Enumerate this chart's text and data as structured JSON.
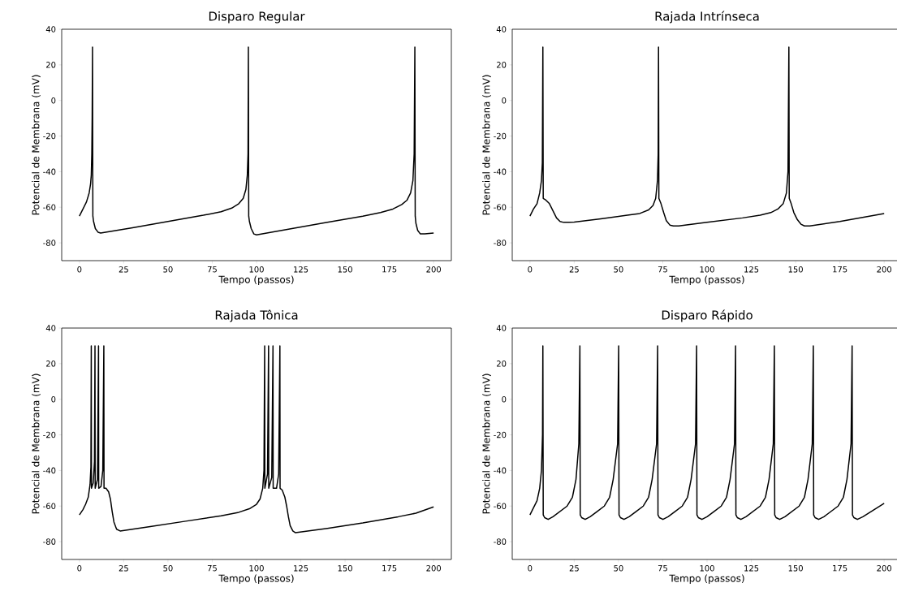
{
  "chart_data": [
    {
      "type": "line",
      "title": "Disparo Regular",
      "xlabel": "Tempo (passos)",
      "ylabel": "Potencial de Membrana (mV)",
      "xlim": [
        -10,
        210
      ],
      "ylim": [
        -90,
        40
      ],
      "xticks": [
        0,
        25,
        50,
        75,
        100,
        125,
        150,
        175,
        200
      ],
      "yticks": [
        -80,
        -60,
        -40,
        -20,
        0,
        20,
        40
      ],
      "x": [
        0,
        2,
        4,
        5.5,
        6.3,
        6.7,
        7.0,
        7.2,
        7.4,
        7.6,
        8,
        9,
        10.5,
        12,
        30,
        50,
        70,
        80,
        86,
        90,
        92.5,
        94,
        94.8,
        95.2,
        95.4,
        95.6,
        96,
        97,
        98.5,
        100,
        120,
        140,
        160,
        170,
        177,
        182,
        185,
        187,
        188.3,
        189,
        189.4,
        189.6,
        190,
        191,
        192.5,
        195,
        200
      ],
      "series": [
        {
          "color": "#000000",
          "values": [
            -65,
            -61,
            -57,
            -52,
            -47,
            -42,
            -30,
            -10,
            30,
            -65,
            -68,
            -72,
            -74,
            -74.5,
            -71.5,
            -68,
            -64.5,
            -62.5,
            -60.5,
            -58,
            -55,
            -50,
            -42,
            -30,
            30,
            -65,
            -68,
            -72,
            -75,
            -75.5,
            -72,
            -68.5,
            -65,
            -63,
            -61,
            -58.5,
            -56,
            -52,
            -45,
            -30,
            30,
            -65,
            -69,
            -73,
            -75,
            -75,
            -74.5
          ]
        }
      ]
    },
    {
      "type": "line",
      "title": "Rajada Intrínseca",
      "xlabel": "Tempo (passos)",
      "ylabel": "Potencial de Membrana (mV)",
      "xlim": [
        -10,
        210
      ],
      "ylim": [
        -90,
        40
      ],
      "xticks": [
        0,
        25,
        50,
        75,
        100,
        125,
        150,
        175,
        200
      ],
      "yticks": [
        -80,
        -60,
        -40,
        -20,
        0,
        20,
        40
      ],
      "x": [
        0,
        2,
        4,
        5.5,
        6.5,
        7.0,
        7.3,
        7.5,
        9,
        11,
        13,
        15,
        17,
        19,
        22,
        25,
        40,
        55,
        62,
        67,
        69.5,
        71,
        72,
        72.4,
        72.6,
        72.8,
        74,
        75.5,
        77,
        79,
        81,
        84,
        100,
        120,
        130,
        136,
        140,
        143,
        144.8,
        145.7,
        146.2,
        146.4,
        147.5,
        149,
        151,
        153,
        155,
        158,
        175,
        200
      ],
      "series": [
        {
          "color": "#000000",
          "values": [
            -65,
            -61,
            -58,
            -52,
            -45,
            -35,
            30,
            -55,
            -56,
            -58,
            -62,
            -66,
            -68,
            -68.5,
            -68.5,
            -68.3,
            -66.5,
            -64.5,
            -63.5,
            -61.5,
            -59,
            -55,
            -45,
            -30,
            30,
            -55,
            -58,
            -63,
            -67.5,
            -70,
            -70.5,
            -70.5,
            -68.5,
            -66,
            -64.5,
            -63,
            -61,
            -58,
            -52,
            -40,
            30,
            -55,
            -58,
            -63,
            -67,
            -69.5,
            -70.5,
            -70.5,
            -68,
            -63.5
          ]
        }
      ]
    },
    {
      "type": "line",
      "title": "Rajada Tônica",
      "xlabel": "Tempo (passos)",
      "ylabel": "Potencial de Membrana (mV)",
      "xlim": [
        -10,
        210
      ],
      "ylim": [
        -90,
        40
      ],
      "xticks": [
        0,
        25,
        50,
        75,
        100,
        125,
        150,
        175,
        200
      ],
      "yticks": [
        -80,
        -60,
        -40,
        -20,
        0,
        20,
        40
      ],
      "x": [
        0,
        2,
        3.5,
        5,
        6,
        6.5,
        6.7,
        6.8,
        7.8,
        8.5,
        8.8,
        8.9,
        10.2,
        10.8,
        10.9,
        12.2,
        13.2,
        13.8,
        13.9,
        15,
        16.5,
        17.5,
        18.5,
        19.5,
        21,
        23,
        40,
        60,
        80,
        90,
        96,
        100,
        102,
        103.5,
        104.2,
        104.6,
        104.7,
        106.2,
        106.8,
        106.9,
        108.6,
        109.3,
        109.4,
        111.3,
        112.5,
        113.2,
        113.3,
        114.5,
        116,
        117,
        118,
        119,
        120.5,
        122,
        140,
        160,
        180,
        190,
        200
      ],
      "series": [
        {
          "color": "#000000",
          "values": [
            -65,
            -62,
            -59,
            -55,
            -48,
            -38,
            30,
            -50,
            -47,
            -35,
            30,
            -50,
            -45,
            30,
            -50,
            -49,
            -40,
            30,
            -50,
            -50,
            -52,
            -56,
            -63,
            -69,
            -73,
            -74,
            -71.5,
            -68.5,
            -65.5,
            -63.5,
            -61.5,
            -59,
            -56,
            -50,
            -40,
            30,
            -50,
            -42,
            30,
            -50,
            -44,
            30,
            -50,
            -50,
            -42,
            30,
            -50,
            -51,
            -55,
            -60,
            -66,
            -71,
            -74,
            -75,
            -72.5,
            -69.5,
            -66,
            -64,
            -60.5
          ]
        }
      ]
    },
    {
      "type": "line",
      "title": "Disparo Rápido",
      "xlabel": "Tempo (passos)",
      "ylabel": "Potencial de Membrana (mV)",
      "xlim": [
        -10,
        210
      ],
      "ylim": [
        -90,
        40
      ],
      "xticks": [
        0,
        25,
        50,
        75,
        100,
        125,
        150,
        175,
        200
      ],
      "yticks": [
        -80,
        -60,
        -40,
        -20,
        0,
        20,
        40
      ],
      "x": [
        0,
        2,
        4,
        5.5,
        6.5,
        7.1,
        7.3,
        7.5,
        8.3,
        10.3,
        13,
        17,
        21,
        24,
        26,
        27.6,
        28.2,
        28.4,
        29.2,
        31.2,
        34,
        38,
        42,
        45,
        47,
        49.5,
        50.1,
        50.3,
        51.1,
        53.1,
        56,
        60,
        64,
        67,
        69,
        71.5,
        72.1,
        72.3,
        73.1,
        75.1,
        78,
        82,
        86,
        89,
        91,
        93.5,
        94.1,
        94.3,
        95.1,
        97.1,
        100,
        104,
        108,
        111,
        113,
        115.5,
        116.1,
        116.3,
        117.1,
        119.1,
        122,
        126,
        130,
        133,
        135,
        137.4,
        138,
        138.2,
        139,
        141,
        144,
        148,
        152,
        155,
        157,
        159.4,
        160,
        160.2,
        161,
        163,
        166,
        170,
        174,
        177,
        179,
        181.3,
        181.9,
        182.1,
        182.9,
        184.9,
        188,
        192,
        196,
        200
      ],
      "series": [
        {
          "color": "#000000",
          "values": [
            -65,
            -61,
            -57,
            -50,
            -40,
            -20,
            30,
            -65,
            -66.5,
            -67.5,
            -66,
            -63,
            -60,
            -55,
            -45,
            -25,
            30,
            -65,
            -66.5,
            -67.5,
            -66,
            -63,
            -60,
            -55,
            -45,
            -25,
            30,
            -65,
            -66.5,
            -67.5,
            -66,
            -63,
            -60,
            -55,
            -45,
            -25,
            30,
            -65,
            -66.5,
            -67.5,
            -66,
            -63,
            -60,
            -55,
            -45,
            -25,
            30,
            -65,
            -66.5,
            -67.5,
            -66,
            -63,
            -60,
            -55,
            -45,
            -25,
            30,
            -65,
            -66.5,
            -67.5,
            -66,
            -63,
            -60,
            -55,
            -45,
            -25,
            30,
            -65,
            -66.5,
            -67.5,
            -66,
            -63,
            -60,
            -55,
            -45,
            -25,
            30,
            -65,
            -66.5,
            -67.5,
            -66,
            -63,
            -60,
            -55,
            -45,
            -25,
            30,
            -65,
            -66.5,
            -67.5,
            -66,
            -63.5,
            -61,
            -58.5
          ]
        }
      ]
    }
  ]
}
